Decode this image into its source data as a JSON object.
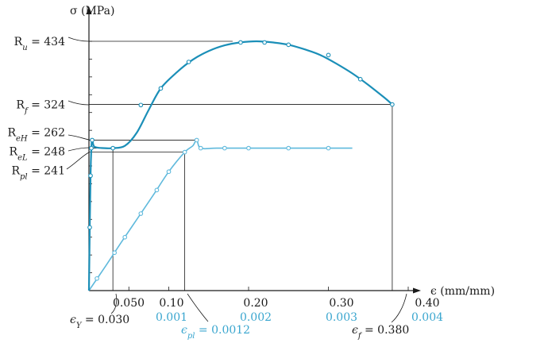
{
  "chart_data": {
    "type": "line",
    "y_axis_label": "σ (MPa)",
    "x_axis_label": "ϵ (mm/mm)",
    "x_range_coarse": [
      0,
      0.4
    ],
    "x_range_fine": [
      0,
      0.004
    ],
    "y_range": [
      0,
      434
    ],
    "colors": {
      "coarse": "#1b8fb8",
      "fine": "#5fb9dc",
      "ink": "#1a1a1a",
      "fine_label": "#3aa6cf"
    },
    "coarse_tick_labels": [
      {
        "x": 0.05,
        "label": "0.050"
      },
      {
        "x": 0.1,
        "label": "0.10"
      },
      {
        "x": 0.2,
        "label": "0.20"
      },
      {
        "x": 0.3,
        "label": "0.30"
      },
      {
        "x": 0.4,
        "label": "0.40"
      }
    ],
    "fine_tick_labels": [
      {
        "x": 0.001,
        "label": "0.001"
      },
      {
        "x": 0.002,
        "label": "0.002"
      },
      {
        "x": 0.003,
        "label": "0.003"
      },
      {
        "x": 0.004,
        "label": "0.004"
      }
    ],
    "y_reference_labels": [
      {
        "id": "Ru",
        "y": 434,
        "prefix": "R",
        "sub": "u",
        "value": "434"
      },
      {
        "id": "Rf",
        "y": 324,
        "prefix": "R",
        "sub": "f",
        "value": "324"
      },
      {
        "id": "ReH",
        "y": 262,
        "prefix": "R",
        "sub": "eH",
        "value": "262"
      },
      {
        "id": "ReL",
        "y": 248,
        "prefix": "R",
        "sub": "eL",
        "value": "248"
      },
      {
        "id": "Rpl",
        "y": 241,
        "prefix": "R",
        "sub": "pl",
        "value": "241"
      }
    ],
    "strain_annotations": [
      {
        "id": "eY",
        "sub": "Y",
        "value": "0.030"
      },
      {
        "id": "epl",
        "sub": "pl",
        "value": "0.0012"
      },
      {
        "id": "ef",
        "sub": "f",
        "value": "0.380"
      }
    ],
    "series": [
      {
        "scale": "coarse",
        "curve": [
          [
            0,
            0
          ],
          [
            0.001,
            110
          ],
          [
            0.002,
            200
          ],
          [
            0.003,
            248
          ],
          [
            0.004,
            262
          ],
          [
            0.006,
            252
          ],
          [
            0.01,
            249
          ],
          [
            0.02,
            248
          ],
          [
            0.03,
            248
          ],
          [
            0.045,
            252
          ],
          [
            0.06,
            275
          ],
          [
            0.075,
            315
          ],
          [
            0.09,
            352
          ],
          [
            0.11,
            380
          ],
          [
            0.13,
            402
          ],
          [
            0.15,
            417
          ],
          [
            0.17,
            427
          ],
          [
            0.19,
            432
          ],
          [
            0.21,
            434
          ],
          [
            0.23,
            432
          ],
          [
            0.25,
            428
          ],
          [
            0.27,
            420
          ],
          [
            0.29,
            410
          ],
          [
            0.31,
            395
          ],
          [
            0.33,
            378
          ],
          [
            0.35,
            358
          ],
          [
            0.37,
            336
          ],
          [
            0.38,
            324
          ]
        ],
        "markers": [
          [
            0.001,
            110
          ],
          [
            0.002,
            200
          ],
          [
            0.003,
            248
          ],
          [
            0.004,
            262
          ],
          [
            0.03,
            248
          ],
          [
            0.065,
            323
          ],
          [
            0.09,
            352
          ],
          [
            0.125,
            398
          ],
          [
            0.19,
            432
          ],
          [
            0.22,
            432
          ],
          [
            0.25,
            428
          ],
          [
            0.3,
            410
          ],
          [
            0.34,
            368
          ],
          [
            0.38,
            324
          ]
        ]
      },
      {
        "scale": "fine",
        "curve": [
          [
            0,
            0
          ],
          [
            0.00021,
            43
          ],
          [
            0.0004,
            83
          ],
          [
            0.0006,
            124
          ],
          [
            0.0008,
            165
          ],
          [
            0.001,
            207
          ],
          [
            0.0012,
            241
          ],
          [
            0.0013,
            252
          ],
          [
            0.00135,
            262
          ],
          [
            0.0014,
            248
          ],
          [
            0.0016,
            248
          ],
          [
            0.002,
            248
          ],
          [
            0.0025,
            248
          ],
          [
            0.003,
            248
          ],
          [
            0.0033,
            248
          ]
        ],
        "markers": [
          [
            0.0001,
            21
          ],
          [
            0.00032,
            66
          ],
          [
            0.00045,
            93
          ],
          [
            0.00065,
            134
          ],
          [
            0.00085,
            175
          ],
          [
            0.001,
            207
          ],
          [
            0.0012,
            241
          ],
          [
            0.00135,
            262
          ],
          [
            0.0014,
            248
          ],
          [
            0.0017,
            248
          ],
          [
            0.002,
            248
          ],
          [
            0.0025,
            248
          ],
          [
            0.003,
            248
          ]
        ]
      }
    ]
  }
}
